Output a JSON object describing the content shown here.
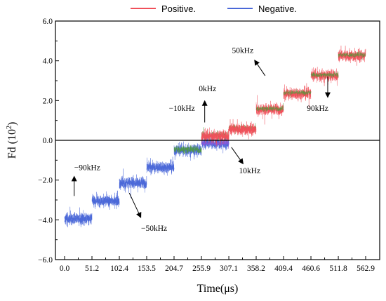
{
  "chart_data": {
    "type": "line",
    "title": "",
    "xlabel": "Time(μs)",
    "ylabel_main": "Fd (10",
    "ylabel_exp": "2",
    "ylabel_close": ")",
    "xlim": [
      0,
      562.9
    ],
    "ylim": [
      -6.0,
      6.0
    ],
    "x_ticks": [
      "0.0",
      "51.2",
      "102.4",
      "153.5",
      "204.7",
      "255.9",
      "307.1",
      "358.2",
      "409.4",
      "460.6",
      "511.8",
      "562.9"
    ],
    "x_tick_values": [
      0,
      51.2,
      102.4,
      153.5,
      204.7,
      255.9,
      307.1,
      358.2,
      409.4,
      460.6,
      511.8,
      562.9
    ],
    "y_ticks": [
      "−6.0",
      "−4.0",
      "−2.0",
      "0.0",
      "2.0",
      "4.0",
      "6.0"
    ],
    "y_tick_values": [
      -6,
      -4,
      -2,
      0,
      2,
      4,
      6
    ],
    "grid": false,
    "legend_position": "top-center",
    "zero_line": true,
    "series": [
      {
        "name": "Positive.",
        "color": "#f0505a",
        "segments": [
          {
            "x0": 255.9,
            "x1": 307.1,
            "level": 0.2
          },
          {
            "x0": 307.1,
            "x1": 358.2,
            "level": 0.55
          },
          {
            "x0": 358.2,
            "x1": 409.4,
            "level": 1.55
          },
          {
            "x0": 409.4,
            "x1": 460.6,
            "level": 2.35
          },
          {
            "x0": 460.6,
            "x1": 511.8,
            "level": 3.25
          },
          {
            "x0": 511.8,
            "x1": 562.9,
            "level": 4.25
          }
        ]
      },
      {
        "name": "Negative.",
        "color": "#4a68d8",
        "segments": [
          {
            "x0": 0,
            "x1": 51.2,
            "level": -3.95
          },
          {
            "x0": 51.2,
            "x1": 102.4,
            "level": -3.05
          },
          {
            "x0": 102.4,
            "x1": 153.5,
            "level": -2.15
          },
          {
            "x0": 153.5,
            "x1": 204.7,
            "level": -1.35
          },
          {
            "x0": 204.7,
            "x1": 255.9,
            "level": -0.5
          },
          {
            "x0": 255.9,
            "x1": 307.1,
            "level": -0.15
          }
        ]
      }
    ],
    "overlay_color": "#4e9a3a",
    "annotations": [
      {
        "text": "−90kHz",
        "x": 18,
        "y": -1.5,
        "arrow_from": [
          18,
          -2.8
        ],
        "arrow_to": [
          18,
          -1.85
        ]
      },
      {
        "text": "−50kHz",
        "x": 143,
        "y": -4.55,
        "arrow_from": [
          121,
          -2.65
        ],
        "arrow_to": [
          142,
          -3.85
        ]
      },
      {
        "text": "−10kHz",
        "x": 195,
        "y": 1.48,
        "arrow_from": null,
        "arrow_to": null
      },
      {
        "text": "0kHz",
        "x": 251,
        "y": 2.47,
        "arrow_from": [
          262,
          0.9
        ],
        "arrow_to": [
          262,
          1.95
        ]
      },
      {
        "text": "10kHz",
        "x": 326,
        "y": -1.65,
        "arrow_from": [
          312,
          -0.35
        ],
        "arrow_to": [
          333,
          -1.15
        ]
      },
      {
        "text": "50kHz",
        "x": 313,
        "y": 4.4,
        "arrow_from": [
          375,
          3.25
        ],
        "arrow_to": [
          356,
          4.0
        ]
      },
      {
        "text": "90kHz",
        "x": 453,
        "y": 1.48,
        "arrow_from": [
          492,
          3.2
        ],
        "arrow_to": [
          492,
          2.2
        ]
      }
    ]
  }
}
